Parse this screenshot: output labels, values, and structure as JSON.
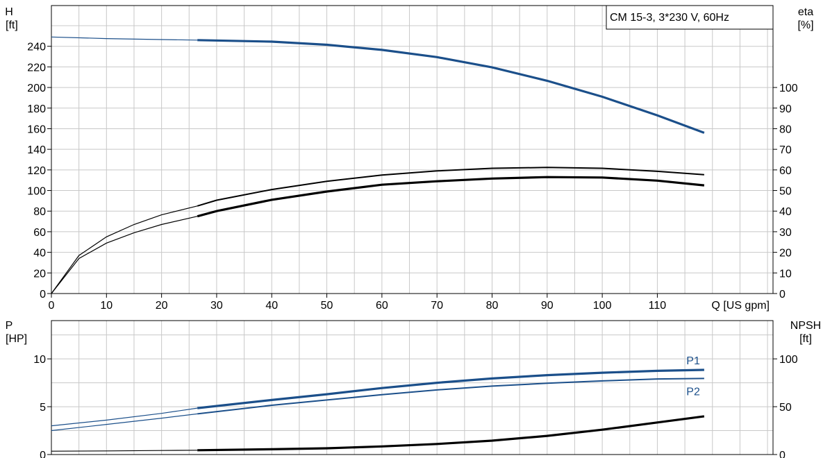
{
  "chart_data": [
    {
      "id": "head_efficiency",
      "type": "line",
      "title_box": "CM 15-3, 3*230 V, 60Hz",
      "xlabel": "Q [US gpm]",
      "xlim": [
        0,
        131
      ],
      "x_ticks": [
        0,
        10,
        20,
        30,
        40,
        50,
        60,
        70,
        80,
        90,
        100,
        110
      ],
      "y_left": {
        "label_line1": "H",
        "label_line2": "[ft]",
        "lim": [
          0,
          260
        ],
        "ticks": [
          0,
          20,
          40,
          60,
          80,
          100,
          120,
          140,
          160,
          180,
          200,
          220,
          240
        ]
      },
      "y_right": {
        "label_line1": "eta",
        "label_line2": "[%]",
        "lim": [
          0,
          130
        ],
        "ticks": [
          0,
          10,
          20,
          30,
          40,
          50,
          60,
          70,
          80,
          90,
          100
        ]
      },
      "grid": true,
      "series": [
        {
          "axis": "left",
          "color": "#1b4f8a",
          "dashed_start": 26.5,
          "x": [
            0,
            10,
            20,
            26.5,
            40,
            50,
            60,
            70,
            80,
            90,
            100,
            110,
            118.5
          ],
          "y": [
            249,
            247.5,
            246.5,
            246,
            244.5,
            241.5,
            236.5,
            229.5,
            219.5,
            206.5,
            191,
            173,
            156
          ]
        },
        {
          "axis": "right",
          "color": "#000000",
          "dashed_start": 26.5,
          "x": [
            0,
            5,
            10,
            15,
            20,
            26.5,
            30,
            40,
            50,
            60,
            70,
            80,
            90,
            100,
            110,
            118.5
          ],
          "y": [
            0,
            18.5,
            27.5,
            33.5,
            38.2,
            42.5,
            45.3,
            50.5,
            54.5,
            57.5,
            59.5,
            60.8,
            61.2,
            60.8,
            59.3,
            57.7
          ]
        },
        {
          "axis": "right",
          "color": "#000000",
          "dashed_start": 26.5,
          "x": [
            0,
            5,
            10,
            15,
            20,
            26.5,
            30,
            40,
            50,
            60,
            70,
            80,
            90,
            100,
            110,
            118.5
          ],
          "y": [
            0,
            17,
            24.5,
            29.5,
            33.5,
            37.5,
            40,
            45.5,
            49.5,
            52.8,
            54.5,
            55.8,
            56.5,
            56.3,
            54.8,
            52.5
          ]
        }
      ]
    },
    {
      "id": "power_npsh",
      "type": "line",
      "xlim": [
        0,
        131
      ],
      "y_left": {
        "label_line1": "P",
        "label_line2": "[HP]",
        "lim": [
          0,
          14
        ],
        "ticks": [
          0,
          5,
          10
        ]
      },
      "y_right": {
        "label_line1": "NPSH",
        "label_line2": "[ft]",
        "lim": [
          0,
          140
        ],
        "ticks": [
          0,
          50,
          100
        ]
      },
      "grid": true,
      "series": [
        {
          "name": "P1",
          "axis": "left",
          "color": "#1b4f8a",
          "dashed_start": 26.5,
          "x": [
            0,
            10,
            20,
            26.5,
            40,
            50,
            60,
            70,
            80,
            90,
            100,
            110,
            118.5
          ],
          "y": [
            3.0,
            3.6,
            4.3,
            4.85,
            5.7,
            6.3,
            6.95,
            7.5,
            7.95,
            8.3,
            8.55,
            8.75,
            8.85
          ]
        },
        {
          "name": "P2",
          "axis": "left",
          "color": "#1b4f8a",
          "dashed_start": 26.5,
          "x": [
            0,
            10,
            20,
            26.5,
            40,
            50,
            60,
            70,
            80,
            90,
            100,
            110,
            118.5
          ],
          "y": [
            2.5,
            3.15,
            3.8,
            4.25,
            5.15,
            5.7,
            6.25,
            6.75,
            7.15,
            7.45,
            7.7,
            7.9,
            7.95
          ]
        },
        {
          "axis": "right",
          "color": "#000000",
          "dashed_start": 26.5,
          "x": [
            0,
            10,
            20,
            26.5,
            40,
            50,
            60,
            70,
            80,
            90,
            100,
            110,
            118.5
          ],
          "y": [
            3.5,
            3.8,
            4.2,
            4.5,
            5.5,
            6.5,
            8.5,
            11,
            14.5,
            19.5,
            26,
            33.5,
            40
          ]
        }
      ]
    }
  ]
}
